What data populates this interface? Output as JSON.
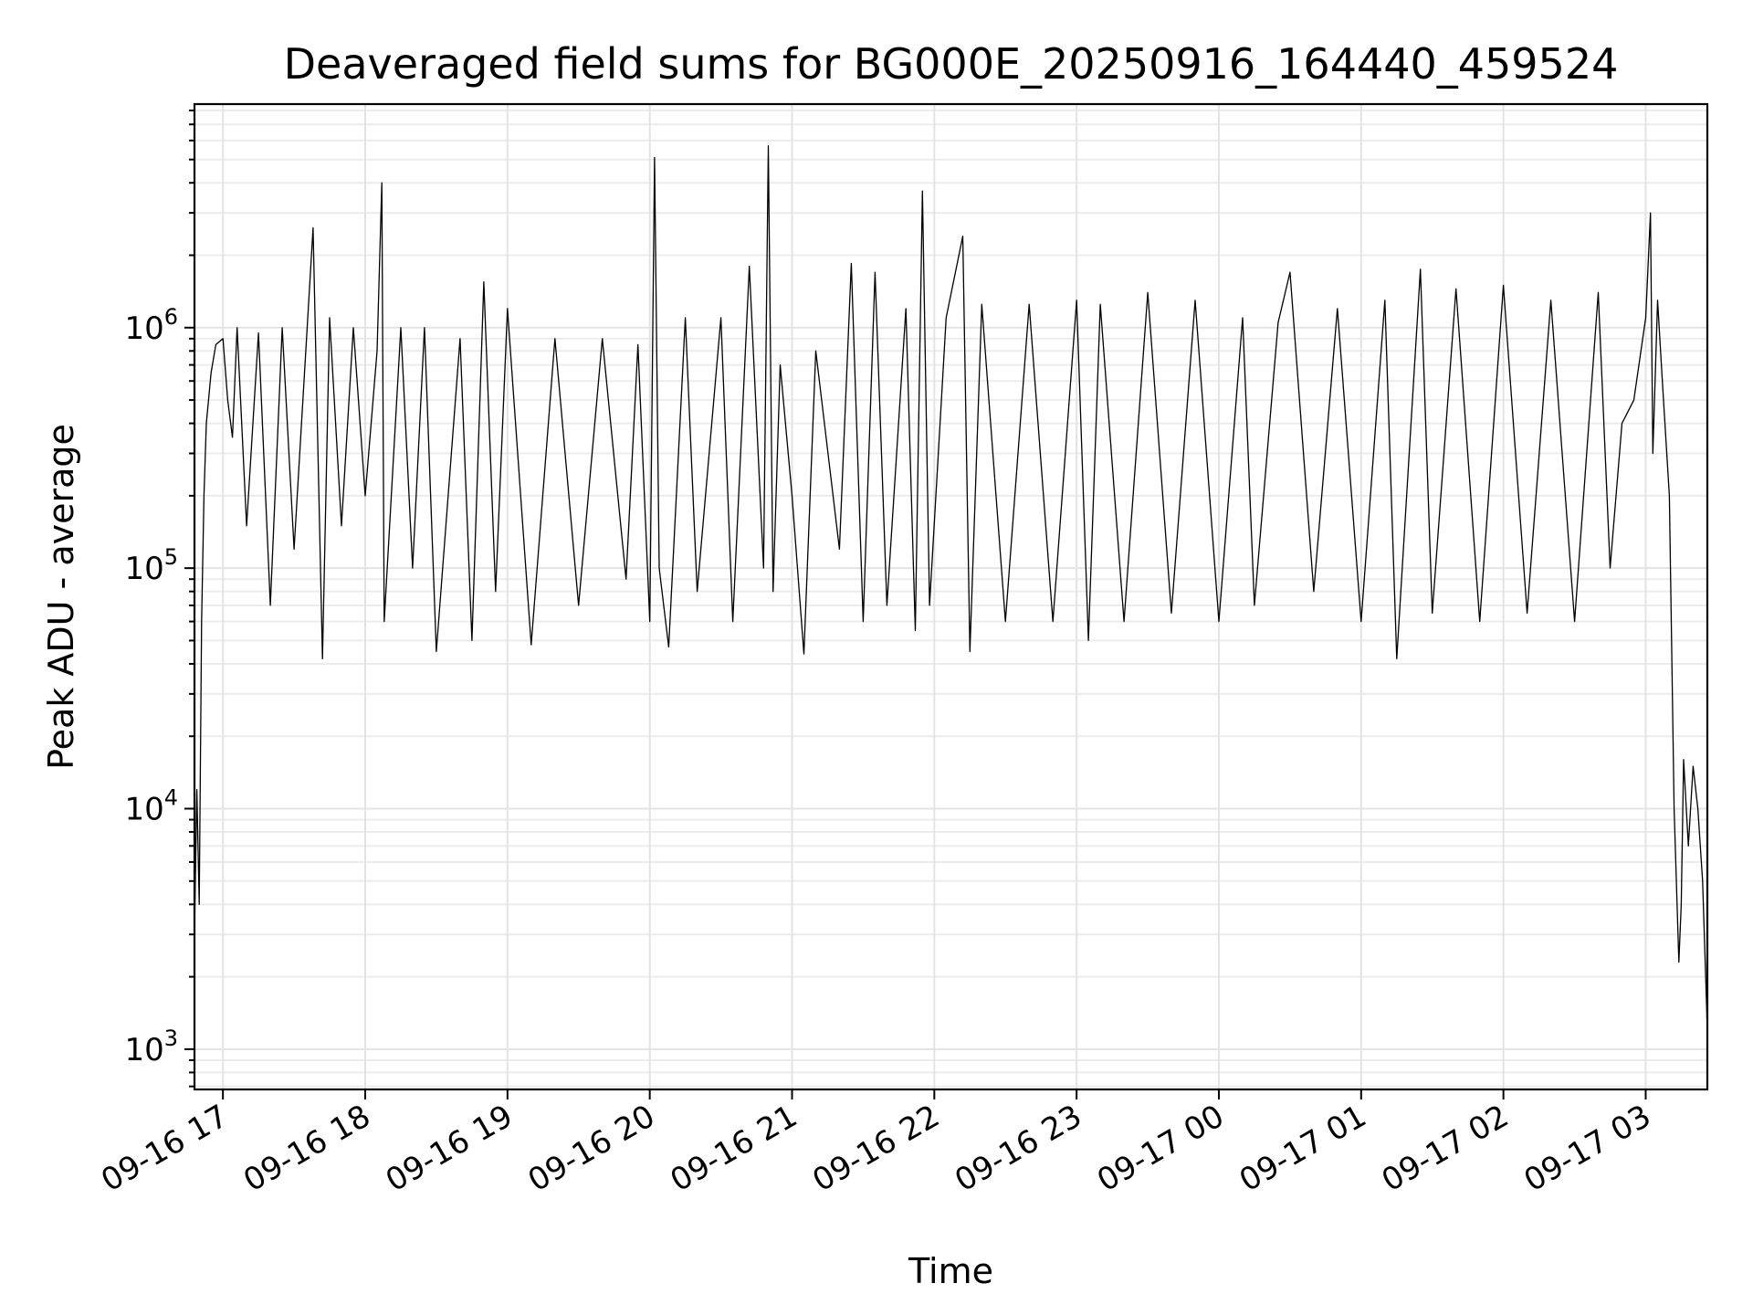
{
  "chart_data": {
    "type": "line",
    "title": "Deaveraged field sums for BG000E_20250916_164440_459524",
    "xlabel": "Time",
    "ylabel": "Peak ADU - average",
    "yscale": "log",
    "ylim": [
      680,
      8500000
    ],
    "xlim": [
      "2025-09-16 16:48",
      "2025-09-17 03:26"
    ],
    "grid": true,
    "x_ticks": [
      {
        "value": "2025-09-16 17:00",
        "label": "09-16 17"
      },
      {
        "value": "2025-09-16 18:00",
        "label": "09-16 18"
      },
      {
        "value": "2025-09-16 19:00",
        "label": "09-16 19"
      },
      {
        "value": "2025-09-16 20:00",
        "label": "09-16 20"
      },
      {
        "value": "2025-09-16 21:00",
        "label": "09-16 21"
      },
      {
        "value": "2025-09-16 22:00",
        "label": "09-16 22"
      },
      {
        "value": "2025-09-16 23:00",
        "label": "09-16 23"
      },
      {
        "value": "2025-09-17 00:00",
        "label": "09-17 00"
      },
      {
        "value": "2025-09-17 01:00",
        "label": "09-17 01"
      },
      {
        "value": "2025-09-17 02:00",
        "label": "09-17 02"
      },
      {
        "value": "2025-09-17 03:00",
        "label": "09-17 03"
      }
    ],
    "y_ticks": [
      {
        "value": 1000,
        "base": "10",
        "exp": "3"
      },
      {
        "value": 10000,
        "base": "10",
        "exp": "4"
      },
      {
        "value": 100000,
        "base": "10",
        "exp": "5"
      },
      {
        "value": 1000000,
        "base": "10",
        "exp": "6"
      }
    ],
    "series": [
      {
        "color": "#000000",
        "points": [
          [
            "2025-09-16 16:48",
            3000
          ],
          [
            "2025-09-16 16:49",
            12000
          ],
          [
            "2025-09-16 16:50",
            4000
          ],
          [
            "2025-09-16 16:51",
            60000
          ],
          [
            "2025-09-16 16:52",
            200000
          ],
          [
            "2025-09-16 16:53",
            400000
          ],
          [
            "2025-09-16 16:55",
            650000
          ],
          [
            "2025-09-16 16:57",
            850000
          ],
          [
            "2025-09-16 17:00",
            900000
          ],
          [
            "2025-09-16 17:02",
            500000
          ],
          [
            "2025-09-16 17:04",
            350000
          ],
          [
            "2025-09-16 17:06",
            1000000
          ],
          [
            "2025-09-16 17:10",
            150000
          ],
          [
            "2025-09-16 17:15",
            950000
          ],
          [
            "2025-09-16 17:20",
            70000
          ],
          [
            "2025-09-16 17:25",
            1000000
          ],
          [
            "2025-09-16 17:30",
            120000
          ],
          [
            "2025-09-16 17:38",
            2600000
          ],
          [
            "2025-09-16 17:42",
            42000
          ],
          [
            "2025-09-16 17:45",
            1100000
          ],
          [
            "2025-09-16 17:50",
            150000
          ],
          [
            "2025-09-16 17:55",
            1000000
          ],
          [
            "2025-09-16 18:00",
            200000
          ],
          [
            "2025-09-16 18:05",
            800000
          ],
          [
            "2025-09-16 18:07",
            4000000
          ],
          [
            "2025-09-16 18:08",
            60000
          ],
          [
            "2025-09-16 18:15",
            1000000
          ],
          [
            "2025-09-16 18:20",
            100000
          ],
          [
            "2025-09-16 18:25",
            1000000
          ],
          [
            "2025-09-16 18:30",
            45000
          ],
          [
            "2025-09-16 18:40",
            900000
          ],
          [
            "2025-09-16 18:45",
            50000
          ],
          [
            "2025-09-16 18:50",
            1550000
          ],
          [
            "2025-09-16 18:55",
            80000
          ],
          [
            "2025-09-16 19:00",
            1200000
          ],
          [
            "2025-09-16 19:10",
            48000
          ],
          [
            "2025-09-16 19:20",
            900000
          ],
          [
            "2025-09-16 19:30",
            70000
          ],
          [
            "2025-09-16 19:40",
            900000
          ],
          [
            "2025-09-16 19:50",
            90000
          ],
          [
            "2025-09-16 19:55",
            850000
          ],
          [
            "2025-09-16 20:00",
            60000
          ],
          [
            "2025-09-16 20:02",
            5100000
          ],
          [
            "2025-09-16 20:04",
            100000
          ],
          [
            "2025-09-16 20:08",
            47000
          ],
          [
            "2025-09-16 20:15",
            1100000
          ],
          [
            "2025-09-16 20:20",
            80000
          ],
          [
            "2025-09-16 20:30",
            1100000
          ],
          [
            "2025-09-16 20:35",
            60000
          ],
          [
            "2025-09-16 20:42",
            1800000
          ],
          [
            "2025-09-16 20:48",
            100000
          ],
          [
            "2025-09-16 20:50",
            5700000
          ],
          [
            "2025-09-16 20:52",
            80000
          ],
          [
            "2025-09-16 20:55",
            700000
          ],
          [
            "2025-09-16 21:00",
            200000
          ],
          [
            "2025-09-16 21:05",
            44000
          ],
          [
            "2025-09-16 21:10",
            800000
          ],
          [
            "2025-09-16 21:20",
            120000
          ],
          [
            "2025-09-16 21:25",
            1850000
          ],
          [
            "2025-09-16 21:30",
            60000
          ],
          [
            "2025-09-16 21:35",
            1700000
          ],
          [
            "2025-09-16 21:40",
            70000
          ],
          [
            "2025-09-16 21:48",
            1200000
          ],
          [
            "2025-09-16 21:52",
            55000
          ],
          [
            "2025-09-16 21:55",
            3700000
          ],
          [
            "2025-09-16 21:58",
            70000
          ],
          [
            "2025-09-16 22:05",
            1100000
          ],
          [
            "2025-09-16 22:12",
            2400000
          ],
          [
            "2025-09-16 22:15",
            45000
          ],
          [
            "2025-09-16 22:20",
            1250000
          ],
          [
            "2025-09-16 22:30",
            60000
          ],
          [
            "2025-09-16 22:40",
            1250000
          ],
          [
            "2025-09-16 22:50",
            60000
          ],
          [
            "2025-09-16 23:00",
            1300000
          ],
          [
            "2025-09-16 23:05",
            50000
          ],
          [
            "2025-09-16 23:10",
            1250000
          ],
          [
            "2025-09-16 23:20",
            60000
          ],
          [
            "2025-09-16 23:30",
            1400000
          ],
          [
            "2025-09-16 23:40",
            65000
          ],
          [
            "2025-09-16 23:50",
            1300000
          ],
          [
            "2025-09-17 00:00",
            60000
          ],
          [
            "2025-09-17 00:10",
            1100000
          ],
          [
            "2025-09-17 00:15",
            70000
          ],
          [
            "2025-09-17 00:25",
            1050000
          ],
          [
            "2025-09-17 00:30",
            1700000
          ],
          [
            "2025-09-17 00:40",
            80000
          ],
          [
            "2025-09-17 00:50",
            1200000
          ],
          [
            "2025-09-17 01:00",
            60000
          ],
          [
            "2025-09-17 01:10",
            1300000
          ],
          [
            "2025-09-17 01:15",
            42000
          ],
          [
            "2025-09-17 01:25",
            1750000
          ],
          [
            "2025-09-17 01:30",
            65000
          ],
          [
            "2025-09-17 01:40",
            1450000
          ],
          [
            "2025-09-17 01:50",
            60000
          ],
          [
            "2025-09-17 02:00",
            1500000
          ],
          [
            "2025-09-17 02:10",
            65000
          ],
          [
            "2025-09-17 02:20",
            1300000
          ],
          [
            "2025-09-17 02:30",
            60000
          ],
          [
            "2025-09-17 02:40",
            1400000
          ],
          [
            "2025-09-17 02:45",
            100000
          ],
          [
            "2025-09-17 02:50",
            400000
          ],
          [
            "2025-09-17 02:55",
            500000
          ],
          [
            "2025-09-17 03:00",
            1100000
          ],
          [
            "2025-09-17 03:02",
            3000000
          ],
          [
            "2025-09-17 03:03",
            300000
          ],
          [
            "2025-09-17 03:05",
            1300000
          ],
          [
            "2025-09-17 03:07",
            600000
          ],
          [
            "2025-09-17 03:10",
            200000
          ],
          [
            "2025-09-17 03:12",
            10000
          ],
          [
            "2025-09-17 03:14",
            2300
          ],
          [
            "2025-09-17 03:15",
            4000
          ],
          [
            "2025-09-17 03:16",
            16000
          ],
          [
            "2025-09-17 03:18",
            7000
          ],
          [
            "2025-09-17 03:20",
            15000
          ],
          [
            "2025-09-17 03:22",
            10000
          ],
          [
            "2025-09-17 03:24",
            5000
          ],
          [
            "2025-09-17 03:26",
            1200
          ]
        ]
      }
    ]
  }
}
